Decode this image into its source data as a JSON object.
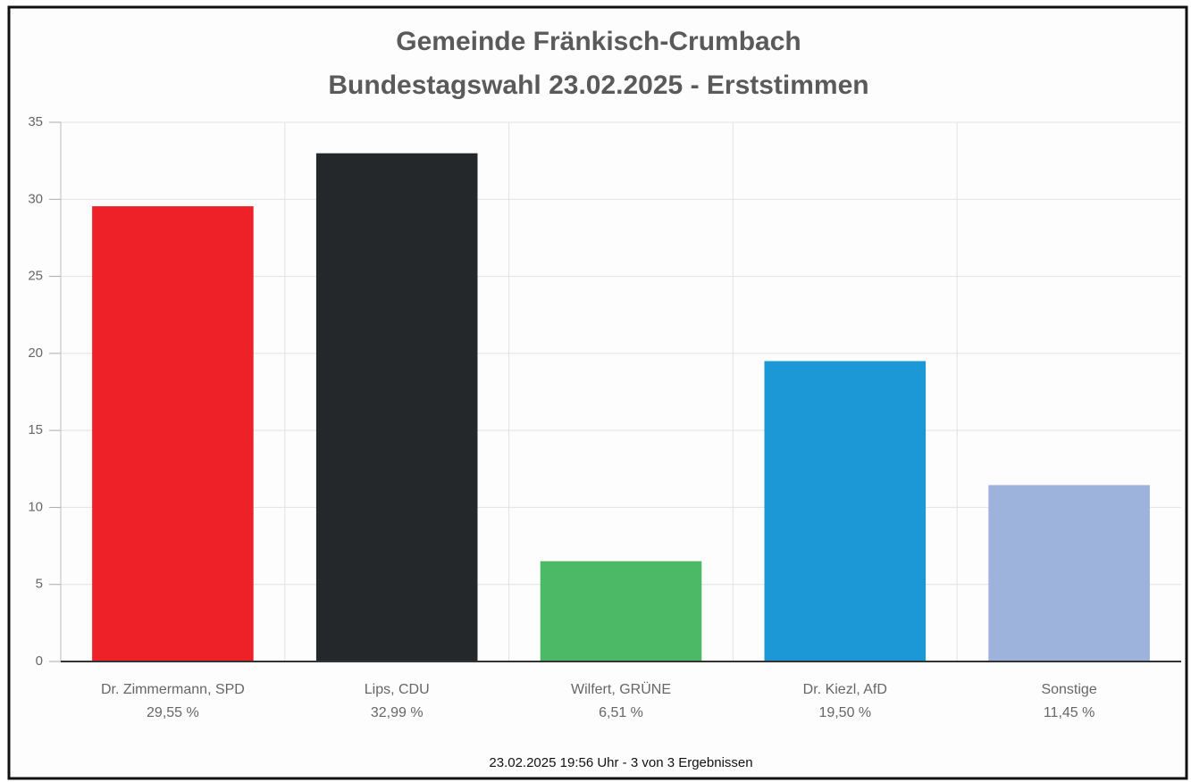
{
  "chart_data": {
    "type": "bar",
    "title": "Gemeinde Fränkisch-Crumbach",
    "subtitle": "Bundestagswahl 23.02.2025  - Erststimmen",
    "categories": [
      "Dr. Zimmermann, SPD",
      "Lips, CDU",
      "Wilfert, GRÜNE",
      "Dr. Kiezl, AfD",
      "Sonstige"
    ],
    "values": [
      29.55,
      32.99,
      6.51,
      19.5,
      11.45
    ],
    "value_labels": [
      "29,55 %",
      "32,99 %",
      "6,51 %",
      "19,50 %",
      "11,45 %"
    ],
    "colors": [
      "#ee2129",
      "#25282b",
      "#4cb966",
      "#1c98d6",
      "#9db3db"
    ],
    "ylim": [
      0,
      35
    ],
    "yticks": [
      0,
      5,
      10,
      15,
      20,
      25,
      30,
      35
    ],
    "grid": true,
    "footnote": "23.02.2025 19:56 Uhr - 3 von 3 Ergebnissen"
  }
}
